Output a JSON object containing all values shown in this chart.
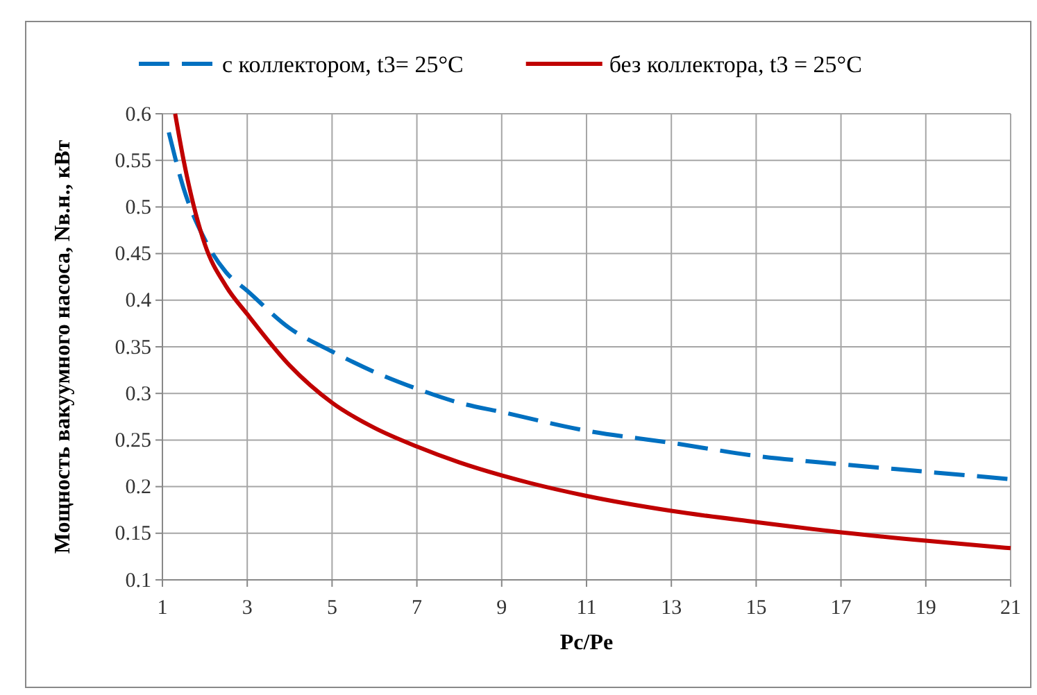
{
  "chart_data": {
    "type": "line",
    "xlabel": "Pc/Pe",
    "ylabel": "Мощность вакуумного насоса, Nв.н., кВт",
    "xlim": [
      1,
      21
    ],
    "xticks": [
      1,
      3,
      5,
      7,
      9,
      11,
      13,
      15,
      17,
      19,
      21
    ],
    "ylim": [
      0.1,
      0.6
    ],
    "yticks": [
      0.1,
      0.15,
      0.2,
      0.25,
      0.3,
      0.35,
      0.4,
      0.45,
      0.5,
      0.55,
      0.6
    ],
    "grid": true,
    "legend": "top",
    "marker": "none",
    "series": [
      {
        "name": "с коллектором, t3= 25°C",
        "color": "#0070c0",
        "line_style": "dashed",
        "x": [
          1.15,
          1.5,
          2,
          2.5,
          3,
          4,
          5,
          6,
          7,
          8,
          9,
          11,
          13,
          15,
          17,
          19,
          21
        ],
        "values": [
          0.58,
          0.52,
          0.465,
          0.43,
          0.41,
          0.37,
          0.345,
          0.323,
          0.305,
          0.29,
          0.28,
          0.26,
          0.247,
          0.233,
          0.224,
          0.216,
          0.208
        ]
      },
      {
        "name": "без коллектора, t3 = 25°C",
        "color": "#c00000",
        "line_style": "solid",
        "x": [
          1.3,
          1.5,
          2,
          2.5,
          3,
          4,
          5,
          6,
          7,
          8,
          9,
          11,
          13,
          15,
          17,
          19,
          21
        ],
        "values": [
          0.6,
          0.55,
          0.46,
          0.415,
          0.385,
          0.33,
          0.29,
          0.263,
          0.243,
          0.226,
          0.212,
          0.19,
          0.174,
          0.162,
          0.151,
          0.142,
          0.134
        ]
      }
    ]
  }
}
